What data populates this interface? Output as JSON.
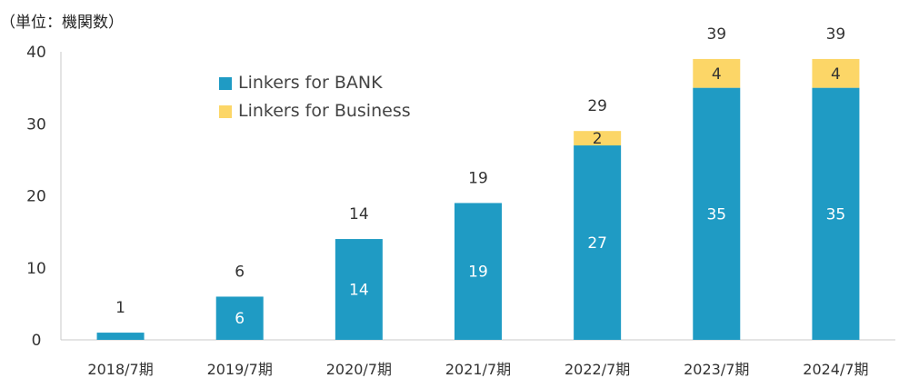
{
  "chart_data": {
    "type": "bar",
    "stacked": true,
    "unit_label": "（単位：機関数）",
    "categories": [
      "2018/7期",
      "2019/7期",
      "2020/7期",
      "2021/7期",
      "2022/7期",
      "2023/7期",
      "2024/7期"
    ],
    "series": [
      {
        "name": "Linkers for BANK",
        "color": "#1f9bc4",
        "values": [
          1,
          6,
          14,
          19,
          27,
          35,
          35
        ]
      },
      {
        "name": "Linkers for Business",
        "color": "#fcd667",
        "values": [
          0,
          0,
          0,
          0,
          2,
          4,
          4
        ]
      }
    ],
    "totals": [
      1,
      6,
      14,
      19,
      29,
      39,
      39
    ],
    "ylim": [
      0,
      40
    ],
    "yticks": [
      0,
      10,
      20,
      30,
      40
    ],
    "legend_position": "top-left inside plot",
    "grid": false
  }
}
